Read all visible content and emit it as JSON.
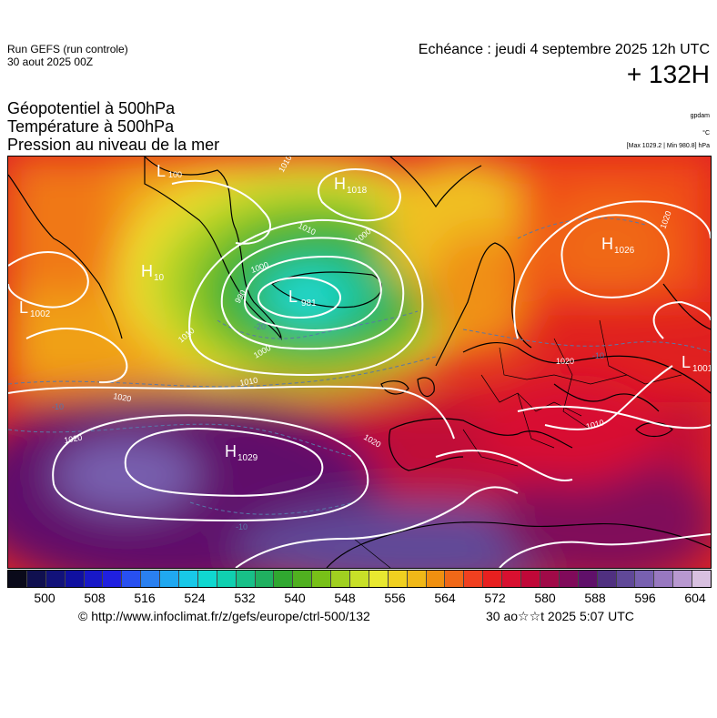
{
  "header": {
    "run_line1": "Run GEFS (run controle)",
    "run_line2": "30 aout 2025 00Z",
    "echeance": "Echéance : jeudi 4 septembre 2025 12h UTC",
    "lead_time": "+ 132H"
  },
  "titles": {
    "line1": "Géopotentiel à 500hPa",
    "line2": "Température à 500hPa",
    "line3": "Pression au niveau de la mer"
  },
  "units": {
    "geopotential": "gpdam",
    "temperature": "°C",
    "pressure_range": "[Max 1029.2 | Min 980.8] hPa"
  },
  "pressure_centers": [
    {
      "type": "L",
      "value": "100",
      "color": "#ffffff"
    },
    {
      "type": "H",
      "value": "1018",
      "color": "#ffffff"
    },
    {
      "type": "H",
      "value": "1026",
      "color": "#ffffff"
    },
    {
      "type": "H",
      "value": "10",
      "color": "#ffffff"
    },
    {
      "type": "L",
      "value": "1002",
      "color": "#ffffff"
    },
    {
      "type": "L",
      "value": "981",
      "color": "#ffffff"
    },
    {
      "type": "L",
      "value": "1001",
      "color": "#ffffff"
    },
    {
      "type": "H",
      "value": "1029",
      "color": "#ffffff"
    }
  ],
  "isobar_labels": [
    "1010",
    "1010",
    "1000",
    "1000",
    "990",
    "1010",
    "1000",
    "1010",
    "1020",
    "1020",
    "1020",
    "1020",
    "1010",
    "1020"
  ],
  "isotherm_labels": [
    "-20",
    "-10",
    "-10",
    "-10"
  ],
  "colorbar": {
    "colors": [
      "#0a0a1a",
      "#101050",
      "#12127a",
      "#1010a0",
      "#1818c8",
      "#2020e0",
      "#2850f0",
      "#2a80f0",
      "#20a8f0",
      "#18c8e8",
      "#10d8d0",
      "#10d0b0",
      "#18c088",
      "#20b060",
      "#30a830",
      "#50b020",
      "#78c018",
      "#a0d020",
      "#c8e028",
      "#e8e830",
      "#f0d020",
      "#f0b818",
      "#f09010",
      "#f06818",
      "#f04020",
      "#e82020",
      "#d81030",
      "#c00838",
      "#a00a48",
      "#800a5a",
      "#60106a",
      "#503080",
      "#604898",
      "#7860b0",
      "#9878c0",
      "#b898d0",
      "#d8c0e0"
    ],
    "ticks": [
      "500",
      "508",
      "516",
      "524",
      "532",
      "540",
      "548",
      "556",
      "564",
      "572",
      "580",
      "588",
      "596",
      "604"
    ]
  },
  "footer": {
    "source": "© http://www.infoclimat.fr/z/gefs/europe/ctrl-500/132",
    "timestamp": "30 ao☆☆t 2025  5:07 UTC"
  }
}
